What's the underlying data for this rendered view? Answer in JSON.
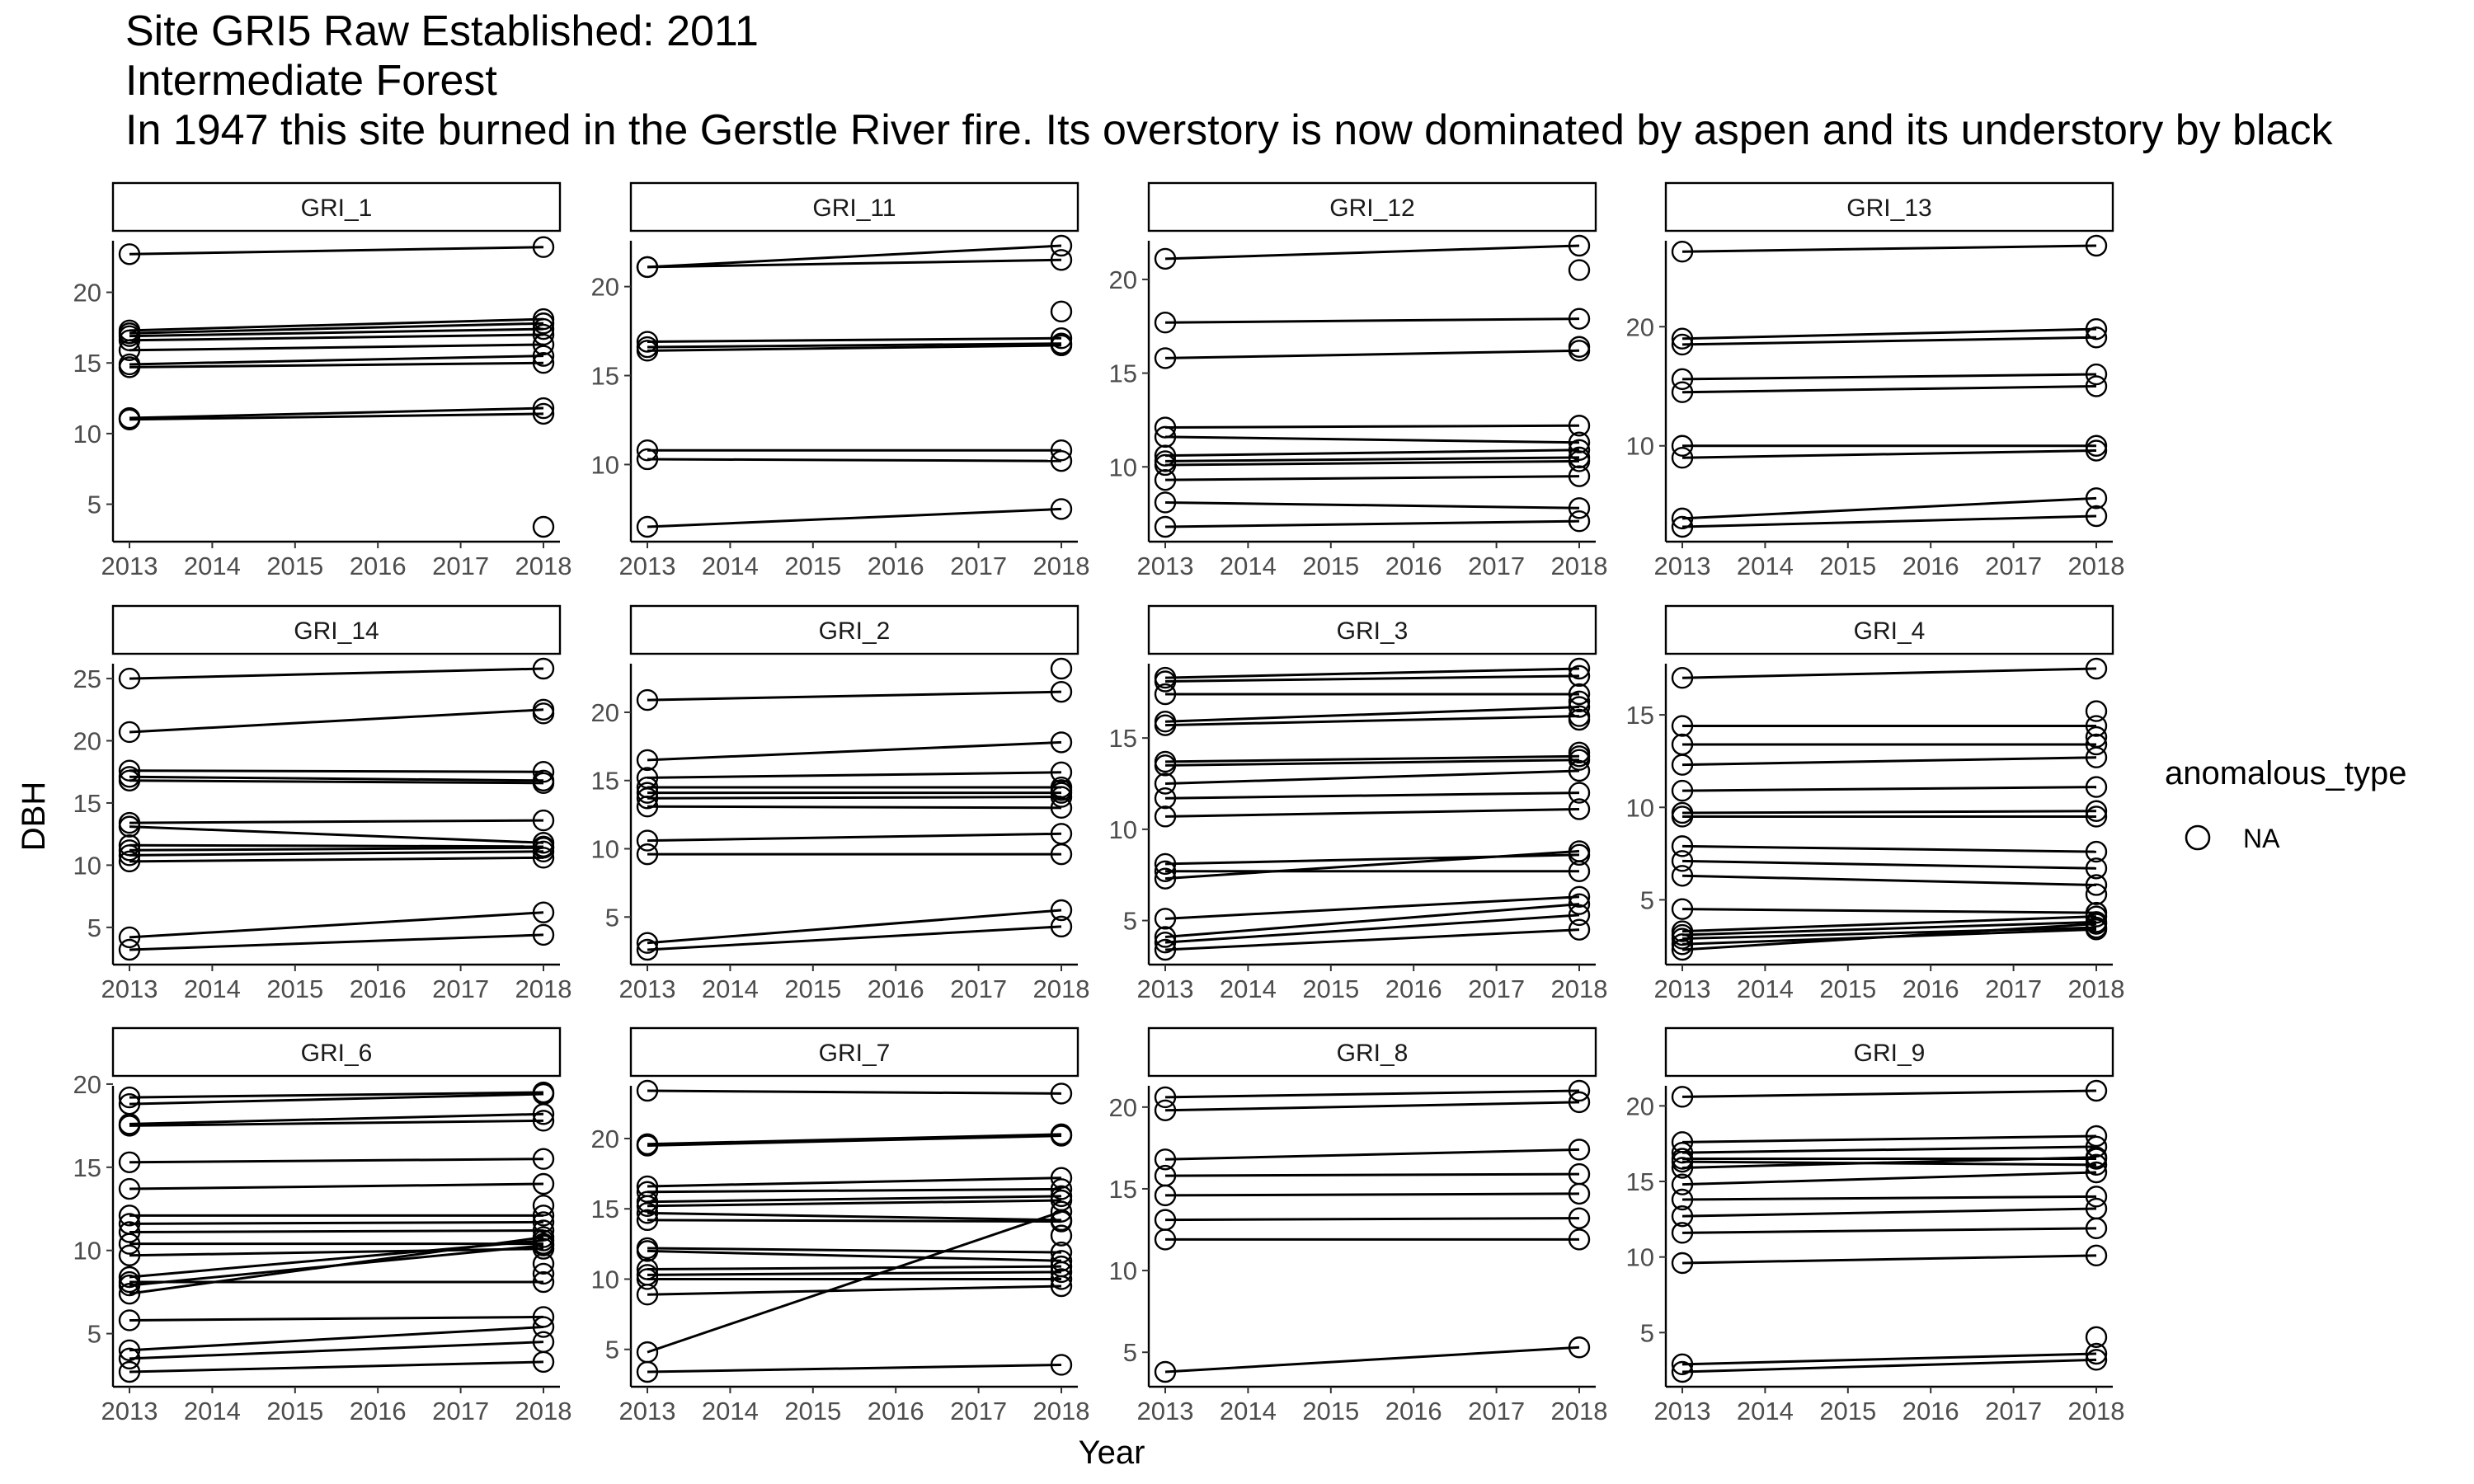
{
  "title_lines": [
    "Site GRI5 Raw Established: 2011",
    " Intermediate Forest",
    " In 1947 this site burned in the Gerstle River fire. Its overstory is now dominated by aspen and its understory by black"
  ],
  "chart_data": {
    "type": "line",
    "xlabel": "Year",
    "ylabel": "DBH",
    "x_ticks": [
      2013,
      2014,
      2015,
      2016,
      2017,
      2018
    ],
    "xlim": [
      2013,
      2018
    ],
    "legend": {
      "title": "anomalous_type",
      "entries": [
        "NA"
      ],
      "position": "right",
      "marker": "open-circle"
    },
    "grid": false,
    "panels": [
      {
        "name": "GRI_1",
        "ylim": [
          3.4,
          23.3
        ],
        "y_ticks": [
          5,
          10,
          15,
          20
        ],
        "lines": [
          [
            22.7,
            23.2
          ],
          [
            17.3,
            18.1
          ],
          [
            17.1,
            17.8
          ],
          [
            16.9,
            17.4
          ],
          [
            16.6,
            17.0
          ],
          [
            15.9,
            16.3
          ],
          [
            14.9,
            15.5
          ],
          [
            14.7,
            15.0
          ],
          [
            11.1,
            11.8
          ],
          [
            11.0,
            11.4
          ]
        ],
        "points_2018": [
          3.4
        ]
      },
      {
        "name": "GRI_11",
        "ylim": [
          6.5,
          22.3
        ],
        "y_ticks": [
          10,
          15,
          20
        ],
        "lines": [
          [
            21.1,
            22.3
          ],
          [
            21.1,
            21.5
          ],
          [
            16.9,
            17.1
          ],
          [
            16.6,
            16.8
          ],
          [
            16.4,
            16.7
          ],
          [
            10.8,
            10.8
          ],
          [
            10.3,
            10.2
          ],
          [
            6.5,
            7.5
          ]
        ],
        "points_2018": [
          18.6
        ]
      },
      {
        "name": "GRI_12",
        "ylim": [
          6.8,
          21.8
        ],
        "y_ticks": [
          10,
          15,
          20
        ],
        "lines": [
          [
            21.1,
            21.8
          ],
          [
            17.7,
            17.9
          ],
          [
            15.8,
            16.2
          ],
          [
            12.1,
            12.2
          ],
          [
            11.6,
            11.3
          ],
          [
            10.6,
            10.9
          ],
          [
            10.3,
            10.5
          ],
          [
            10.1,
            10.3
          ],
          [
            9.3,
            9.5
          ],
          [
            8.1,
            7.8
          ],
          [
            6.8,
            7.1
          ]
        ],
        "points_2018": [
          20.5,
          16.4
        ]
      },
      {
        "name": "GRI_13",
        "ylim": [
          3.2,
          26.8
        ],
        "y_ticks": [
          10,
          20
        ],
        "lines": [
          [
            26.3,
            26.8
          ],
          [
            19.0,
            19.8
          ],
          [
            18.5,
            19.1
          ],
          [
            15.6,
            16.0
          ],
          [
            14.5,
            15.0
          ],
          [
            10.0,
            10.0
          ],
          [
            9.0,
            9.6
          ],
          [
            3.9,
            5.6
          ],
          [
            3.2,
            4.1
          ]
        ],
        "points_2018": []
      },
      {
        "name": "GRI_14",
        "ylim": [
          3.2,
          25.8
        ],
        "y_ticks": [
          5,
          10,
          15,
          20,
          25
        ],
        "lines": [
          [
            25.0,
            25.8
          ],
          [
            20.7,
            22.5
          ],
          [
            17.6,
            17.5
          ],
          [
            17.1,
            16.8
          ],
          [
            16.8,
            16.6
          ],
          [
            13.4,
            13.6
          ],
          [
            13.1,
            11.8
          ],
          [
            11.6,
            11.5
          ],
          [
            11.2,
            11.4
          ],
          [
            10.8,
            11.1
          ],
          [
            10.3,
            10.6
          ],
          [
            4.2,
            6.2
          ],
          [
            3.2,
            4.4
          ]
        ],
        "points_2018": [
          22.2
        ]
      },
      {
        "name": "GRI_2",
        "ylim": [
          2.6,
          23.2
        ],
        "y_ticks": [
          5,
          10,
          15,
          20
        ],
        "lines": [
          [
            20.9,
            21.5
          ],
          [
            16.5,
            17.8
          ],
          [
            15.2,
            15.6
          ],
          [
            14.5,
            14.5
          ],
          [
            14.1,
            14.1
          ],
          [
            13.7,
            13.8
          ],
          [
            13.1,
            13.0
          ],
          [
            10.6,
            11.1
          ],
          [
            9.6,
            9.6
          ],
          [
            3.1,
            5.5
          ],
          [
            2.6,
            4.3
          ]
        ],
        "points_2018": [
          23.2,
          14.3
        ]
      },
      {
        "name": "GRI_3",
        "ylim": [
          3.4,
          18.8
        ],
        "y_ticks": [
          5,
          10,
          15
        ],
        "lines": [
          [
            18.3,
            18.8
          ],
          [
            18.1,
            18.4
          ],
          [
            17.4,
            17.4
          ],
          [
            15.9,
            16.7
          ],
          [
            15.7,
            16.2
          ],
          [
            13.7,
            14.0
          ],
          [
            13.5,
            13.8
          ],
          [
            12.5,
            13.2
          ],
          [
            11.7,
            12.0
          ],
          [
            10.7,
            11.1
          ],
          [
            8.1,
            8.6
          ],
          [
            7.7,
            7.7
          ],
          [
            7.3,
            8.8
          ],
          [
            5.1,
            6.3
          ],
          [
            4.1,
            5.9
          ],
          [
            3.8,
            5.3
          ],
          [
            3.4,
            4.5
          ]
        ],
        "points_2018": [
          17.0,
          16.0,
          14.2
        ]
      },
      {
        "name": "GRI_4",
        "ylim": [
          2.3,
          17.5
        ],
        "y_ticks": [
          5,
          10,
          15
        ],
        "lines": [
          [
            17.0,
            17.5
          ],
          [
            14.4,
            14.4
          ],
          [
            13.4,
            13.4
          ],
          [
            12.3,
            12.7
          ],
          [
            10.9,
            11.1
          ],
          [
            9.7,
            9.8
          ],
          [
            9.5,
            9.5
          ],
          [
            7.9,
            7.6
          ],
          [
            7.1,
            6.7
          ],
          [
            6.3,
            5.8
          ],
          [
            4.5,
            4.3
          ],
          [
            3.3,
            4.1
          ],
          [
            3.1,
            3.8
          ],
          [
            2.9,
            3.5
          ],
          [
            2.6,
            3.4
          ],
          [
            2.3,
            3.7
          ]
        ],
        "points_2018": [
          15.2,
          13.8,
          5.3
        ]
      },
      {
        "name": "GRI_6",
        "ylim": [
          2.7,
          19.6
        ],
        "y_ticks": [
          5,
          10,
          15,
          20
        ],
        "lines": [
          [
            19.2,
            19.5
          ],
          [
            18.8,
            19.4
          ],
          [
            17.6,
            18.2
          ],
          [
            17.5,
            17.8
          ],
          [
            15.3,
            15.5
          ],
          [
            13.7,
            14.0
          ],
          [
            12.1,
            12.1
          ],
          [
            11.6,
            11.7
          ],
          [
            11.1,
            11.2
          ],
          [
            10.4,
            10.4
          ],
          [
            9.7,
            10.1
          ],
          [
            8.4,
            10.6
          ],
          [
            8.1,
            8.1
          ],
          [
            7.9,
            10.3
          ],
          [
            7.4,
            10.8
          ],
          [
            5.8,
            6.0
          ],
          [
            4.0,
            5.4
          ],
          [
            3.5,
            4.5
          ],
          [
            2.7,
            3.3
          ]
        ],
        "points_2018": [
          12.7,
          9.2,
          8.6
        ]
      },
      {
        "name": "GRI_7",
        "ylim": [
          3.4,
          23.4
        ],
        "y_ticks": [
          5,
          10,
          15,
          20
        ],
        "lines": [
          [
            23.4,
            23.2
          ],
          [
            19.6,
            20.3
          ],
          [
            19.5,
            20.2
          ],
          [
            16.6,
            17.2
          ],
          [
            16.2,
            16.4
          ],
          [
            15.5,
            15.9
          ],
          [
            15.2,
            15.6
          ],
          [
            14.7,
            14.2
          ],
          [
            14.2,
            14.1
          ],
          [
            12.2,
            11.9
          ],
          [
            12.0,
            11.3
          ],
          [
            10.7,
            10.9
          ],
          [
            10.3,
            10.5
          ],
          [
            10.0,
            10.0
          ],
          [
            8.9,
            9.5
          ],
          [
            4.8,
            14.8
          ],
          [
            3.4,
            3.9
          ]
        ],
        "points_2018": [
          13.1
        ]
      },
      {
        "name": "GRI_8",
        "ylim": [
          3.8,
          21.0
        ],
        "y_ticks": [
          5,
          10,
          15,
          20
        ],
        "lines": [
          [
            20.6,
            21.0
          ],
          [
            19.8,
            20.3
          ],
          [
            16.8,
            17.4
          ],
          [
            15.8,
            15.9
          ],
          [
            14.6,
            14.7
          ],
          [
            13.1,
            13.2
          ],
          [
            11.9,
            11.9
          ],
          [
            3.8,
            5.3
          ]
        ],
        "points_2018": []
      },
      {
        "name": "GRI_9",
        "ylim": [
          2.4,
          21.0
        ],
        "y_ticks": [
          5,
          10,
          15,
          20
        ],
        "lines": [
          [
            20.6,
            21.0
          ],
          [
            17.6,
            18.0
          ],
          [
            16.9,
            17.3
          ],
          [
            16.5,
            16.5
          ],
          [
            16.3,
            16.1
          ],
          [
            15.9,
            16.6
          ],
          [
            14.8,
            15.6
          ],
          [
            13.8,
            14.0
          ],
          [
            12.7,
            13.2
          ],
          [
            11.6,
            11.9
          ],
          [
            9.6,
            10.1
          ],
          [
            2.9,
            3.6
          ],
          [
            2.4,
            3.2
          ]
        ],
        "points_2018": [
          4.7
        ]
      }
    ]
  }
}
